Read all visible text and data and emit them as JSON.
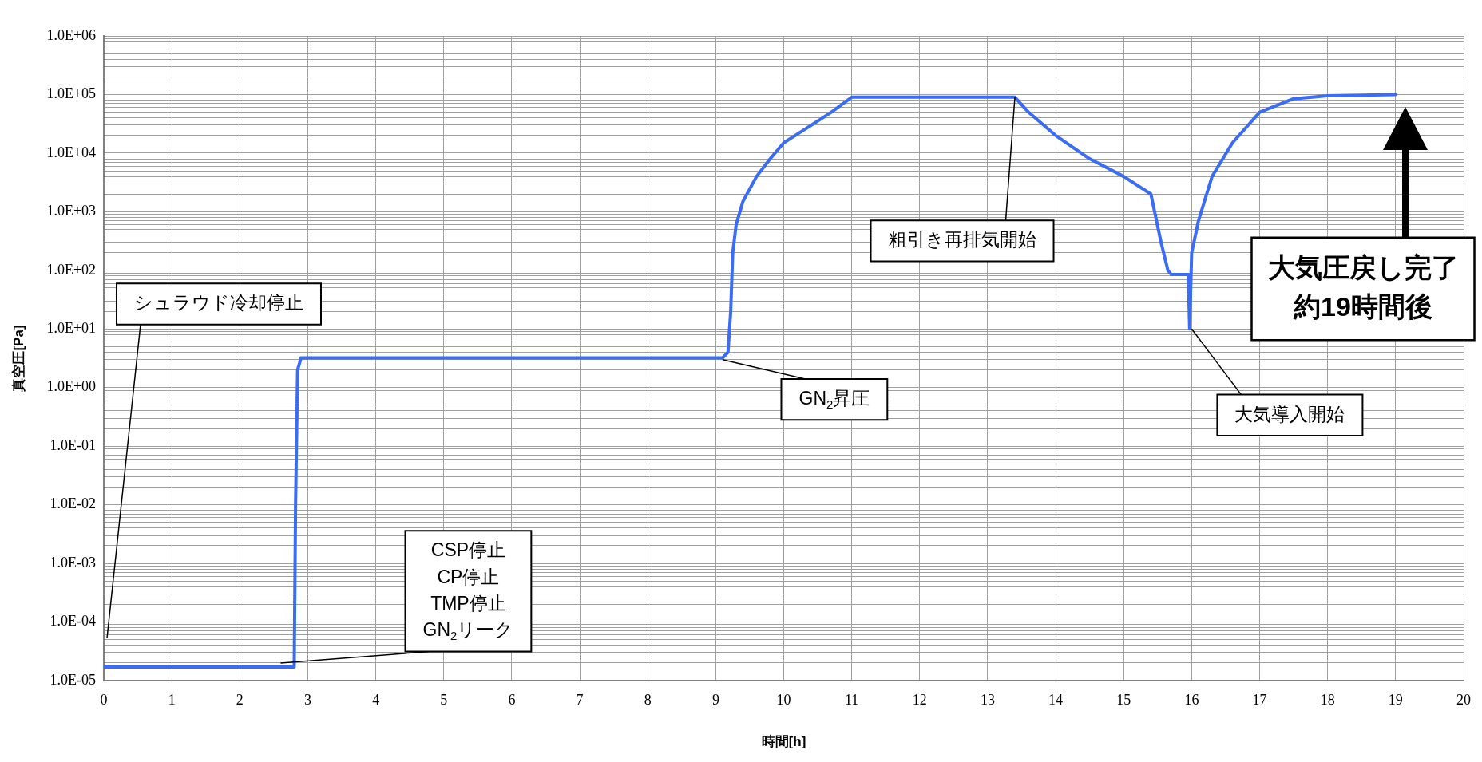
{
  "chart_data": {
    "type": "line",
    "xlabel": "時間[h]",
    "ylabel": "真空圧[Pa]",
    "log": "y",
    "grid": true,
    "legend": false,
    "marker": "none",
    "line_style": "solid",
    "xlim": [
      0,
      20
    ],
    "xticks": [
      0,
      1,
      2,
      3,
      4,
      5,
      6,
      7,
      8,
      9,
      10,
      11,
      12,
      13,
      14,
      15,
      16,
      17,
      18,
      19,
      20
    ],
    "ylim": [
      1e-05,
      1000000.0
    ],
    "yticks": [
      {
        "value": 1e-05,
        "label": "1.0E-05"
      },
      {
        "value": 2e-05,
        "label": null
      },
      {
        "value": 3e-05,
        "label": null
      },
      {
        "value": 4e-05,
        "label": null
      },
      {
        "value": 5e-05,
        "label": null
      },
      {
        "value": 6e-05,
        "label": null
      },
      {
        "value": 7e-05,
        "label": null
      },
      {
        "value": 8e-05,
        "label": null
      },
      {
        "value": 9e-05,
        "label": null
      },
      {
        "value": 0.0001,
        "label": "1.0E-04"
      },
      {
        "value": 0.0002,
        "label": null
      },
      {
        "value": 0.0003,
        "label": null
      },
      {
        "value": 0.0004,
        "label": null
      },
      {
        "value": 0.0005,
        "label": null
      },
      {
        "value": 0.0006,
        "label": null
      },
      {
        "value": 0.0007,
        "label": null
      },
      {
        "value": 0.0008,
        "label": null
      },
      {
        "value": 0.0009,
        "label": null
      },
      {
        "value": 0.001,
        "label": "1.0E-03"
      },
      {
        "value": 0.002,
        "label": null
      },
      {
        "value": 0.003,
        "label": null
      },
      {
        "value": 0.004,
        "label": null
      },
      {
        "value": 0.005,
        "label": null
      },
      {
        "value": 0.006,
        "label": null
      },
      {
        "value": 0.007,
        "label": null
      },
      {
        "value": 0.008,
        "label": null
      },
      {
        "value": 0.009,
        "label": null
      },
      {
        "value": 0.01,
        "label": "1.0E-02"
      },
      {
        "value": 0.02,
        "label": null
      },
      {
        "value": 0.03,
        "label": null
      },
      {
        "value": 0.04,
        "label": null
      },
      {
        "value": 0.05,
        "label": null
      },
      {
        "value": 0.06,
        "label": null
      },
      {
        "value": 0.07,
        "label": null
      },
      {
        "value": 0.08,
        "label": null
      },
      {
        "value": 0.09,
        "label": null
      },
      {
        "value": 0.1,
        "label": "1.0E-01"
      },
      {
        "value": 0.2,
        "label": null
      },
      {
        "value": 0.3,
        "label": null
      },
      {
        "value": 0.4,
        "label": null
      },
      {
        "value": 0.5,
        "label": null
      },
      {
        "value": 0.6,
        "label": null
      },
      {
        "value": 0.7,
        "label": null
      },
      {
        "value": 0.8,
        "label": null
      },
      {
        "value": 0.9,
        "label": null
      },
      {
        "value": 1,
        "label": "1.0E+00"
      },
      {
        "value": 2,
        "label": null
      },
      {
        "value": 3,
        "label": null
      },
      {
        "value": 4,
        "label": null
      },
      {
        "value": 5,
        "label": null
      },
      {
        "value": 6,
        "label": null
      },
      {
        "value": 7,
        "label": null
      },
      {
        "value": 8,
        "label": null
      },
      {
        "value": 9,
        "label": null
      },
      {
        "value": 10,
        "label": "1.0E+01"
      },
      {
        "value": 20,
        "label": null
      },
      {
        "value": 30,
        "label": null
      },
      {
        "value": 40,
        "label": null
      },
      {
        "value": 50,
        "label": null
      },
      {
        "value": 60,
        "label": null
      },
      {
        "value": 70,
        "label": null
      },
      {
        "value": 80,
        "label": null
      },
      {
        "value": 90,
        "label": null
      },
      {
        "value": 100,
        "label": "1.0E+02"
      },
      {
        "value": 200,
        "label": null
      },
      {
        "value": 300,
        "label": null
      },
      {
        "value": 400,
        "label": null
      },
      {
        "value": 500,
        "label": null
      },
      {
        "value": 600,
        "label": null
      },
      {
        "value": 700,
        "label": null
      },
      {
        "value": 800,
        "label": null
      },
      {
        "value": 900,
        "label": null
      },
      {
        "value": 1000,
        "label": "1.0E+03"
      },
      {
        "value": 2000,
        "label": null
      },
      {
        "value": 3000,
        "label": null
      },
      {
        "value": 4000,
        "label": null
      },
      {
        "value": 5000,
        "label": null
      },
      {
        "value": 6000,
        "label": null
      },
      {
        "value": 7000,
        "label": null
      },
      {
        "value": 8000,
        "label": null
      },
      {
        "value": 9000,
        "label": null
      },
      {
        "value": 10000,
        "label": "1.0E+04"
      },
      {
        "value": 20000,
        "label": null
      },
      {
        "value": 30000,
        "label": null
      },
      {
        "value": 40000,
        "label": null
      },
      {
        "value": 50000,
        "label": null
      },
      {
        "value": 60000,
        "label": null
      },
      {
        "value": 70000,
        "label": null
      },
      {
        "value": 80000,
        "label": null
      },
      {
        "value": 90000,
        "label": null
      },
      {
        "value": 100000,
        "label": "1.0E+05"
      },
      {
        "value": 200000,
        "label": null
      },
      {
        "value": 300000,
        "label": null
      },
      {
        "value": 400000,
        "label": null
      },
      {
        "value": 500000,
        "label": null
      },
      {
        "value": 600000,
        "label": null
      },
      {
        "value": 700000,
        "label": null
      },
      {
        "value": 800000,
        "label": null
      },
      {
        "value": 900000,
        "label": null
      },
      {
        "value": 1000000,
        "label": "1.0E+06"
      }
    ],
    "series": [
      {
        "color": "#3a6cf4",
        "x": [
          0,
          2.8,
          2.82,
          2.85,
          2.9,
          9.1,
          9.18,
          9.22,
          9.25,
          9.3,
          9.4,
          9.6,
          9.8,
          10,
          10.3,
          10.7,
          11,
          13.4,
          13.6,
          14,
          14.5,
          15,
          15.4,
          15.55,
          15.65,
          15.7,
          15.95,
          15.97,
          16,
          16.1,
          16.3,
          16.6,
          17,
          17.5,
          18,
          19
        ],
        "values": [
          1.7e-05,
          1.7e-05,
          0.01,
          2,
          3.2,
          3.2,
          4,
          20,
          200,
          600,
          1500,
          4000,
          8000,
          15000,
          25000,
          50000,
          90000,
          90000,
          50000,
          20000,
          8000,
          4000,
          2000,
          300,
          100,
          85,
          85,
          10,
          200,
          700,
          4000,
          15000,
          50000,
          85000,
          95000,
          100000
        ]
      }
    ],
    "annotations": [
      "シュラウド冷却停止",
      {
        "text": "CSP停止\nCP停止\nTMP停止\nGN$_{2}$リーク",
        "x": 2.6,
        "y": 2e-05
      },
      {
        "text": "GN$_{2}$昇圧",
        "x": 9.1,
        "y": 3
      },
      {
        "text": "粗引き再排気開始",
        "x": 13.4,
        "y": 90000
      },
      {
        "text": "大気導入開始",
        "x": 16.0,
        "y": 10
      },
      "大気圧戻し完了約19時間後"
    ]
  }
}
